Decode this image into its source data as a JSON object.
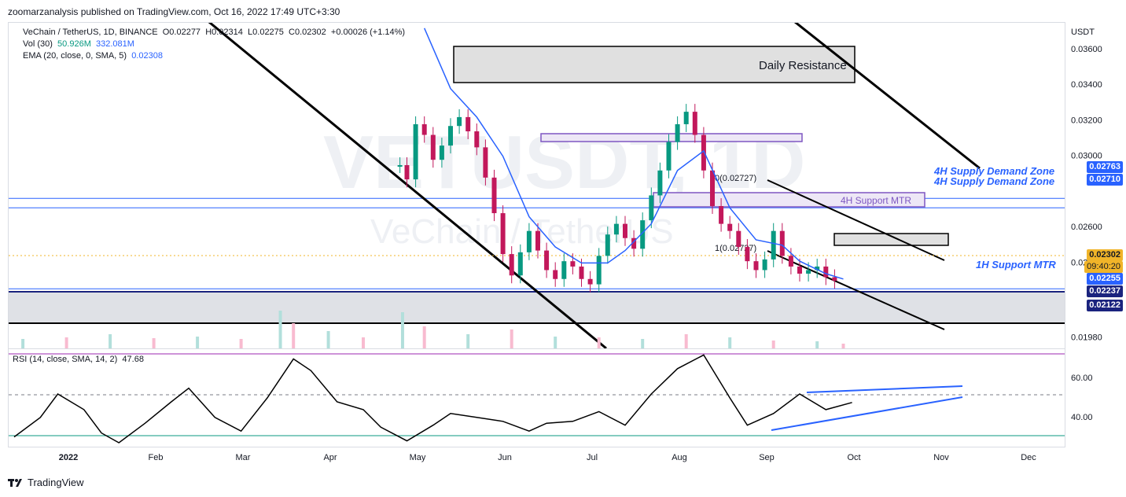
{
  "header": {
    "published": "zoomarzanalysis published on TradingView.com, Oct 16, 2022 17:49 UTC+3:30"
  },
  "legend": {
    "symbol": "VeChain / TetherUS, 1D, BINANCE",
    "o": "O0.02277",
    "h": "H0.02314",
    "l": "L0.02275",
    "c": "C0.02302",
    "chg": "+0.00026 (+1.14%)",
    "vol_label": "Vol (30)",
    "vol_a": "50.926M",
    "vol_b": "332.081M",
    "ema_label": "EMA (20, close, 0, SMA, 5)",
    "ema_val": "0.02308",
    "rsi_label": "RSI (14, close, SMA, 14, 2)",
    "rsi_val": "47.68"
  },
  "watermark": {
    "symbol": "VETUSDT, 1D",
    "name": "VeChain / TetherUS"
  },
  "annotations": {
    "daily_resistance": "Daily Resistance",
    "supply_demand_1": "4H Supply Demand Zone",
    "supply_demand_2": "4H Supply Demand Zone",
    "support_4h": "4H Support MTR",
    "support_1h": "1H Support MTR",
    "fib_0": "0(0.02727)",
    "fib_1": "1(0.02727)"
  },
  "price_tags": {
    "t1": "0.02763",
    "t2": "0.02710",
    "current": "0.02302",
    "countdown": "09:40:20",
    "t3": "0.02255",
    "t4": "0.02237",
    "t5": "0.02122"
  },
  "currency": "USDT",
  "brand": "TradingView",
  "colors": {
    "up": "#089981",
    "down": "#c2185b",
    "ema": "#2962ff",
    "tag_blue": "#2962ff",
    "tag_dark": "#1a237e",
    "current": "#f0b429"
  },
  "chart_data": {
    "type": "candlestick",
    "y_axis_ticks": [
      "0.03600",
      "0.03400",
      "0.03200",
      "0.03000",
      "0.02600",
      "0.02400",
      "0.01980"
    ],
    "y_tick_values": [
      0.036,
      0.034,
      0.032,
      0.03,
      0.026,
      0.024,
      0.0198
    ],
    "ylim": [
      0.0192,
      0.0375
    ],
    "x_axis_ticks": [
      "2022",
      "Feb",
      "Mar",
      "Apr",
      "May",
      "Jun",
      "Jul",
      "Aug",
      "Sep",
      "Oct",
      "Nov",
      "Dec"
    ],
    "rsi_ticks": [
      "60.00",
      "40.00"
    ],
    "rsi_tick_values": [
      60,
      40
    ],
    "rsi_ylim": [
      25,
      75
    ],
    "horizontal_levels": [
      0.02763,
      0.0271,
      0.02255,
      0.02237,
      0.02122,
      0.0198
    ],
    "close_price": 0.02302,
    "price_series": [
      {
        "m": 4.42,
        "c": 0.0295
      },
      {
        "m": 4.5,
        "c": 0.0287
      },
      {
        "m": 4.6,
        "c": 0.0318
      },
      {
        "m": 4.7,
        "c": 0.0312
      },
      {
        "m": 4.8,
        "c": 0.0298
      },
      {
        "m": 4.9,
        "c": 0.0306
      },
      {
        "m": 5.0,
        "c": 0.0317
      },
      {
        "m": 5.1,
        "c": 0.0322
      },
      {
        "m": 5.2,
        "c": 0.0314
      },
      {
        "m": 5.3,
        "c": 0.0305
      },
      {
        "m": 5.4,
        "c": 0.0288
      },
      {
        "m": 5.5,
        "c": 0.0268
      },
      {
        "m": 5.6,
        "c": 0.0245
      },
      {
        "m": 5.7,
        "c": 0.0233
      },
      {
        "m": 5.8,
        "c": 0.0246
      },
      {
        "m": 5.9,
        "c": 0.0258
      },
      {
        "m": 6.0,
        "c": 0.0247
      },
      {
        "m": 6.1,
        "c": 0.0236
      },
      {
        "m": 6.2,
        "c": 0.0231
      },
      {
        "m": 6.3,
        "c": 0.0241
      },
      {
        "m": 6.4,
        "c": 0.0238
      },
      {
        "m": 6.5,
        "c": 0.0231
      },
      {
        "m": 6.6,
        "c": 0.0228
      },
      {
        "m": 6.7,
        "c": 0.0244
      },
      {
        "m": 6.8,
        "c": 0.0256
      },
      {
        "m": 6.9,
        "c": 0.0262
      },
      {
        "m": 7.0,
        "c": 0.0254
      },
      {
        "m": 7.1,
        "c": 0.0248
      },
      {
        "m": 7.2,
        "c": 0.0264
      },
      {
        "m": 7.3,
        "c": 0.0278
      },
      {
        "m": 7.4,
        "c": 0.0292
      },
      {
        "m": 7.5,
        "c": 0.0308
      },
      {
        "m": 7.6,
        "c": 0.0318
      },
      {
        "m": 7.7,
        "c": 0.0325
      },
      {
        "m": 7.8,
        "c": 0.0312
      },
      {
        "m": 7.9,
        "c": 0.0292
      },
      {
        "m": 8.0,
        "c": 0.0272
      },
      {
        "m": 8.1,
        "c": 0.0262
      },
      {
        "m": 8.2,
        "c": 0.0258
      },
      {
        "m": 8.3,
        "c": 0.0249
      },
      {
        "m": 8.4,
        "c": 0.0241
      },
      {
        "m": 8.5,
        "c": 0.0236
      },
      {
        "m": 8.6,
        "c": 0.0242
      },
      {
        "m": 8.7,
        "c": 0.0258
      },
      {
        "m": 8.8,
        "c": 0.0244
      },
      {
        "m": 8.9,
        "c": 0.0238
      },
      {
        "m": 9.0,
        "c": 0.0234
      },
      {
        "m": 9.1,
        "c": 0.0236
      },
      {
        "m": 9.2,
        "c": 0.0238
      },
      {
        "m": 9.3,
        "c": 0.0232
      },
      {
        "m": 9.4,
        "c": 0.023
      }
    ],
    "ema_series": [
      {
        "m": 4.7,
        "v": 0.0372
      },
      {
        "m": 5.0,
        "v": 0.0338
      },
      {
        "m": 5.3,
        "v": 0.0322
      },
      {
        "m": 5.6,
        "v": 0.03
      },
      {
        "m": 5.9,
        "v": 0.0266
      },
      {
        "m": 6.2,
        "v": 0.0249
      },
      {
        "m": 6.5,
        "v": 0.024
      },
      {
        "m": 6.8,
        "v": 0.024
      },
      {
        "m": 7.0,
        "v": 0.0247
      },
      {
        "m": 7.3,
        "v": 0.0262
      },
      {
        "m": 7.6,
        "v": 0.0292
      },
      {
        "m": 7.9,
        "v": 0.0303
      },
      {
        "m": 8.2,
        "v": 0.0271
      },
      {
        "m": 8.5,
        "v": 0.0253
      },
      {
        "m": 8.8,
        "v": 0.025
      },
      {
        "m": 9.0,
        "v": 0.0241
      },
      {
        "m": 9.3,
        "v": 0.0234
      },
      {
        "m": 9.5,
        "v": 0.0231
      }
    ],
    "rsi_series": [
      {
        "m": 0.0,
        "v": 30
      },
      {
        "m": 0.3,
        "v": 40
      },
      {
        "m": 0.5,
        "v": 52
      },
      {
        "m": 0.8,
        "v": 44
      },
      {
        "m": 1.0,
        "v": 32
      },
      {
        "m": 1.2,
        "v": 27
      },
      {
        "m": 1.5,
        "v": 37
      },
      {
        "m": 1.8,
        "v": 48
      },
      {
        "m": 2.0,
        "v": 55
      },
      {
        "m": 2.3,
        "v": 40
      },
      {
        "m": 2.6,
        "v": 33
      },
      {
        "m": 2.9,
        "v": 50
      },
      {
        "m": 3.2,
        "v": 70
      },
      {
        "m": 3.4,
        "v": 64
      },
      {
        "m": 3.7,
        "v": 48
      },
      {
        "m": 4.0,
        "v": 44
      },
      {
        "m": 4.2,
        "v": 35
      },
      {
        "m": 4.5,
        "v": 28
      },
      {
        "m": 4.8,
        "v": 36
      },
      {
        "m": 5.0,
        "v": 42
      },
      {
        "m": 5.3,
        "v": 40
      },
      {
        "m": 5.6,
        "v": 38
      },
      {
        "m": 5.9,
        "v": 33
      },
      {
        "m": 6.1,
        "v": 37
      },
      {
        "m": 6.4,
        "v": 38
      },
      {
        "m": 6.7,
        "v": 43
      },
      {
        "m": 7.0,
        "v": 36
      },
      {
        "m": 7.3,
        "v": 52
      },
      {
        "m": 7.6,
        "v": 65
      },
      {
        "m": 7.9,
        "v": 72
      },
      {
        "m": 8.2,
        "v": 50
      },
      {
        "m": 8.4,
        "v": 36
      },
      {
        "m": 8.7,
        "v": 42
      },
      {
        "m": 9.0,
        "v": 52
      },
      {
        "m": 9.3,
        "v": 44
      },
      {
        "m": 9.6,
        "v": 47.68
      }
    ],
    "volume_series": [
      {
        "m": 0.1,
        "v": 12
      },
      {
        "m": 0.6,
        "v": 14
      },
      {
        "m": 1.1,
        "v": 18
      },
      {
        "m": 1.6,
        "v": 13
      },
      {
        "m": 2.1,
        "v": 15
      },
      {
        "m": 2.6,
        "v": 12
      },
      {
        "m": 3.05,
        "v": 48
      },
      {
        "m": 3.2,
        "v": 32
      },
      {
        "m": 3.6,
        "v": 22
      },
      {
        "m": 4.0,
        "v": 14
      },
      {
        "m": 4.45,
        "v": 46
      },
      {
        "m": 4.7,
        "v": 28
      },
      {
        "m": 5.2,
        "v": 18
      },
      {
        "m": 5.7,
        "v": 24
      },
      {
        "m": 6.2,
        "v": 15
      },
      {
        "m": 6.7,
        "v": 14
      },
      {
        "m": 7.2,
        "v": 12
      },
      {
        "m": 7.7,
        "v": 18
      },
      {
        "m": 8.2,
        "v": 14
      },
      {
        "m": 8.7,
        "v": 10
      },
      {
        "m": 9.2,
        "v": 9
      },
      {
        "m": 9.5,
        "v": 6
      }
    ]
  }
}
